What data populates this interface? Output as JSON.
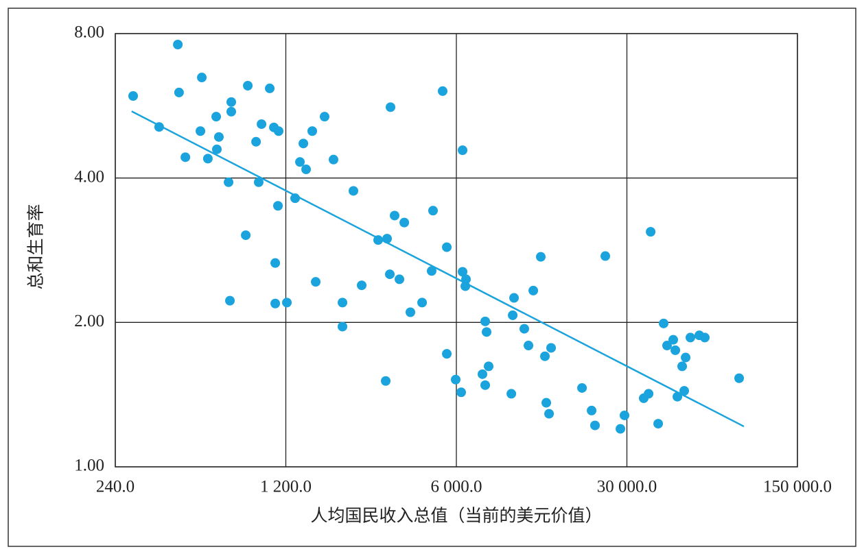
{
  "chart_data": {
    "type": "scatter",
    "xlabel": "人均国民收入总值（当前的美元价值）",
    "ylabel": "总和生育率",
    "xscale": "log",
    "yscale": "log",
    "xlim": [
      240,
      150000
    ],
    "xticks": [
      {
        "value": 240,
        "label": "240.0"
      },
      {
        "value": 1200,
        "label": "1 200.0"
      },
      {
        "value": 6000,
        "label": "6 000.0"
      },
      {
        "value": 30000,
        "label": "30 000.0"
      },
      {
        "value": 150000,
        "label": "150 000.0"
      }
    ],
    "ylim": [
      1,
      8
    ],
    "yticks": [
      {
        "value": 1,
        "label": "1.00"
      },
      {
        "value": 2,
        "label": "2.00"
      },
      {
        "value": 4,
        "label": "4.00"
      },
      {
        "value": 8,
        "label": "8.00"
      }
    ],
    "grid": true,
    "color": "#1aa3dc",
    "x": [
      284,
      363,
      433,
      438,
      465,
      536,
      543,
      575,
      622,
      626,
      638,
      699,
      717,
      717,
      708,
      822,
      838,
      906,
      929,
      954,
      1031,
      1072,
      1121,
      1114,
      1086,
      1086,
      1212,
      1310,
      1371,
      1416,
      1453,
      1540,
      1591,
      1730,
      1882,
      2048,
      2048,
      2271,
      2455,
      2868,
      3080,
      3120,
      3202,
      3223,
      3350,
      3506,
      3670,
      3888,
      4342,
      4752,
      4814,
      5271,
      5482,
      5482,
      5962,
      6279,
      6362,
      6362,
      6530,
      6571,
      7675,
      7877,
      7877,
      7980,
      8136,
      10080,
      10210,
      10340,
      11390,
      11850,
      12400,
      13310,
      13840,
      14020,
      14390,
      14670,
      19640,
      21500,
      22200,
      24470,
      28220,
      29330,
      35160,
      36820,
      37540,
      40300,
      42430,
      43820,
      46460,
      47380,
      48310,
      50540,
      51530,
      52220,
      54620,
      59420,
      62570,
      86520
    ],
    "values": [
      5.93,
      5.11,
      7.59,
      6.03,
      4.42,
      5.01,
      6.48,
      4.39,
      5.37,
      4.59,
      4.87,
      3.92,
      5.76,
      5.5,
      2.22,
      3.04,
      6.23,
      4.76,
      3.92,
      5.18,
      6.15,
      5.1,
      5.01,
      3.5,
      2.66,
      2.19,
      2.2,
      3.63,
      4.32,
      4.72,
      4.17,
      5.01,
      2.43,
      5.37,
      4.37,
      2.2,
      1.96,
      3.76,
      2.39,
      2.97,
      1.51,
      2.99,
      2.52,
      5.62,
      3.34,
      2.46,
      3.23,
      2.1,
      2.2,
      2.56,
      3.42,
      6.07,
      1.72,
      2.87,
      1.52,
      1.43,
      4.57,
      2.55,
      2.38,
      2.46,
      1.56,
      2.01,
      1.48,
      1.91,
      1.62,
      1.42,
      2.07,
      2.25,
      1.94,
      1.79,
      2.33,
      2.74,
      1.7,
      1.36,
      1.29,
      1.77,
      1.46,
      1.31,
      1.22,
      2.75,
      1.2,
      1.28,
      1.39,
      1.42,
      3.09,
      1.23,
      1.99,
      1.79,
      1.84,
      1.75,
      1.4,
      1.62,
      1.44,
      1.69,
      1.86,
      1.88,
      1.86,
      1.53
    ],
    "trendline": {
      "x": [
        280,
        90500
      ],
      "values": [
        5.51,
        1.214
      ],
      "color": "#1aa3dc"
    }
  }
}
